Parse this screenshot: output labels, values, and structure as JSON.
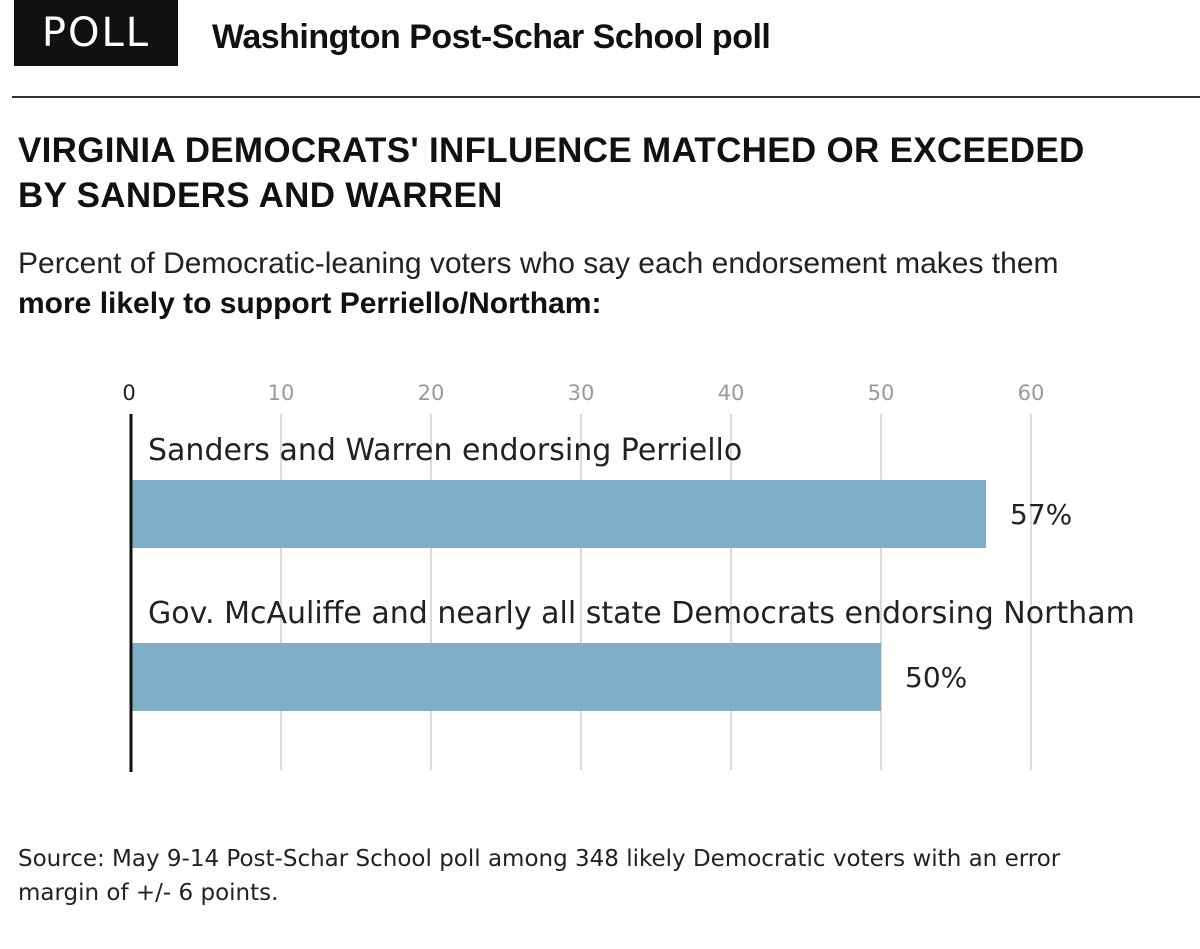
{
  "header": {
    "badge": "POLL",
    "title": "Washington Post-Schar School poll"
  },
  "chart_data": {
    "type": "bar",
    "orientation": "horizontal",
    "title": "VIRGINIA DEMOCRATS' INFLUENCE MATCHED OR EXCEEDED BY SANDERS AND WARREN",
    "subtitle_plain": "Percent of Democratic-leaning voters who say each endorsement makes them ",
    "subtitle_bold": "more likely to support Perriello/Northam:",
    "categories": [
      "Sanders and Warren endorsing Perriello",
      "Gov. McAuliffe and nearly all state Democrats endorsing Northam"
    ],
    "values": [
      57,
      50
    ],
    "value_labels": [
      "57%",
      "50%"
    ],
    "xticks": [
      "0",
      "10",
      "20",
      "30",
      "40",
      "50",
      "60"
    ],
    "xlim": [
      0,
      60
    ],
    "grid": true,
    "legend": "none",
    "bar_color": "#7eafc6",
    "grid_color": "#cfcfcf",
    "axis_color": "#111111"
  },
  "source": "Source: May 9-14 Post-Schar School poll among 348 likely Democratic voters with an error margin of +/- 6 points."
}
